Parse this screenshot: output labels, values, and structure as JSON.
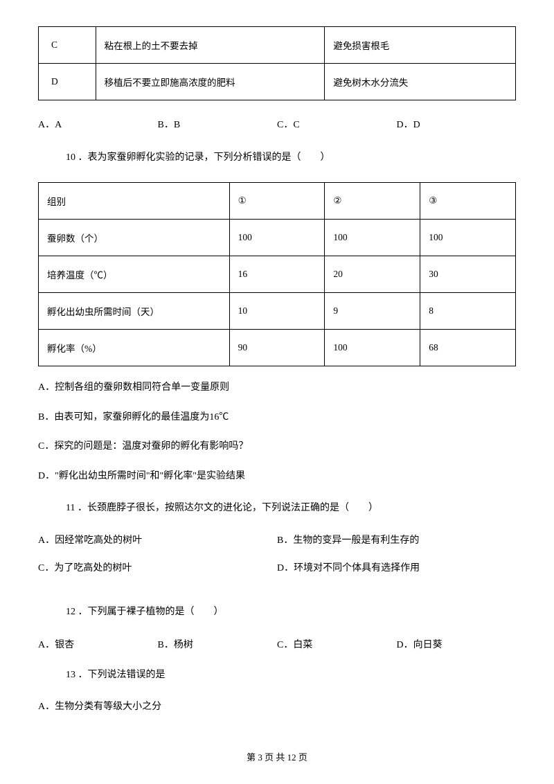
{
  "table1": {
    "rows": [
      {
        "label": "C",
        "method": "粘在根上的土不要去掉",
        "reason": "避免损害根毛"
      },
      {
        "label": "D",
        "method": "移植后不要立即施高浓度的肥料",
        "reason": "避免树木水分流失"
      }
    ]
  },
  "options9": {
    "a": "A．A",
    "b": "B．B",
    "c": "C．C",
    "d": "D．D"
  },
  "q10": {
    "text": "10 ．表为家蚕卵孵化实验的记录，下列分析错误的是（　　）"
  },
  "table2": {
    "header": {
      "c0": "组别",
      "c1": "①",
      "c2": "②",
      "c3": "③"
    },
    "rows": [
      {
        "c0": "蚕卵数（个）",
        "c1": "100",
        "c2": "100",
        "c3": "100"
      },
      {
        "c0": "培养温度（℃）",
        "c1": "16",
        "c2": "20",
        "c3": "30"
      },
      {
        "c0": "孵化出幼虫所需时间（天）",
        "c1": "10",
        "c2": "9",
        "c3": "8"
      },
      {
        "c0": "孵化率（%）",
        "c1": "90",
        "c2": "100",
        "c3": "68"
      }
    ]
  },
  "q10opts": {
    "a": "A．控制各组的蚕卵数相同符合单一变量原则",
    "b": "B．由表可知，家蚕卵孵化的最佳温度为16℃",
    "c": "C．探究的问题是：温度对蚕卵的孵化有影响吗？",
    "d": "D．\"孵化出幼虫所需时间\"和\"孵化率\"是实验结果"
  },
  "q11": {
    "text": "11 ．长颈鹿脖子很长，按照达尔文的进化论，下列说法正确的是（　　）",
    "a": "A．因经常吃高处的树叶",
    "b": "B．生物的变异一般是有利生存的",
    "c": "C．为了吃高处的树叶",
    "d": "D．环境对不同个体具有选择作用"
  },
  "q12": {
    "text": "12 ．下列属于裸子植物的是（　　）",
    "a": "A．银杏",
    "b": "B．杨树",
    "c": "C．白菜",
    "d": "D．向日葵"
  },
  "q13": {
    "text": "13 ．下列说法错误的是",
    "a": "A．生物分类有等级大小之分"
  },
  "footer": "第 3 页 共 12 页"
}
